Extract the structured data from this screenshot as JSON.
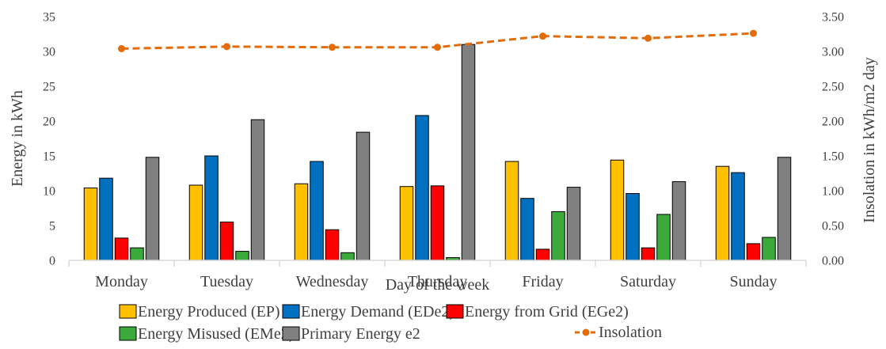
{
  "chart_data": {
    "type": "bar",
    "categories": [
      "Monday",
      "Tuesday",
      "Wednesday",
      "Thursday",
      "Friday",
      "Saturday",
      "Sunday"
    ],
    "series": [
      {
        "name": "Energy Produced (EP)",
        "color": "#FFC000",
        "values": [
          10.4,
          10.8,
          11.0,
          10.6,
          14.2,
          14.4,
          13.5
        ]
      },
      {
        "name": "Energy Demand (EDe2)",
        "color": "#0070C0",
        "values": [
          11.8,
          15.0,
          14.2,
          20.8,
          8.9,
          9.6,
          12.6
        ]
      },
      {
        "name": "Energy from Grid (EGe2)",
        "color": "#FF0000",
        "values": [
          3.2,
          5.5,
          4.4,
          10.7,
          1.6,
          1.8,
          2.4
        ]
      },
      {
        "name": "Energy Misused (EMe2)",
        "color": "#3BAA3B",
        "values": [
          1.8,
          1.3,
          1.1,
          0.4,
          7.0,
          6.6,
          3.3
        ]
      },
      {
        "name": "Primary Energy e2",
        "color": "#808080",
        "values": [
          14.8,
          20.2,
          18.4,
          31.0,
          10.5,
          11.3,
          14.8
        ]
      }
    ],
    "line_series": {
      "name": "Insolation",
      "color": "#E36C09",
      "axis": "right",
      "values": [
        3.04,
        3.07,
        3.06,
        3.06,
        3.22,
        3.19,
        3.26
      ]
    },
    "xlabel": "Day of the week",
    "ylabel": "Energy in kWh",
    "y2label": "Insolation in kWh/m2 day",
    "ylim": [
      0,
      35
    ],
    "y2lim": [
      0,
      3.5
    ],
    "yticks": [
      "0",
      "5",
      "10",
      "15",
      "20",
      "25",
      "30",
      "35"
    ],
    "y2ticks": [
      "0.00",
      "0.50",
      "1.00",
      "1.50",
      "2.00",
      "2.50",
      "3.00",
      "3.50"
    ],
    "grid": false,
    "legend_position": "bottom"
  }
}
